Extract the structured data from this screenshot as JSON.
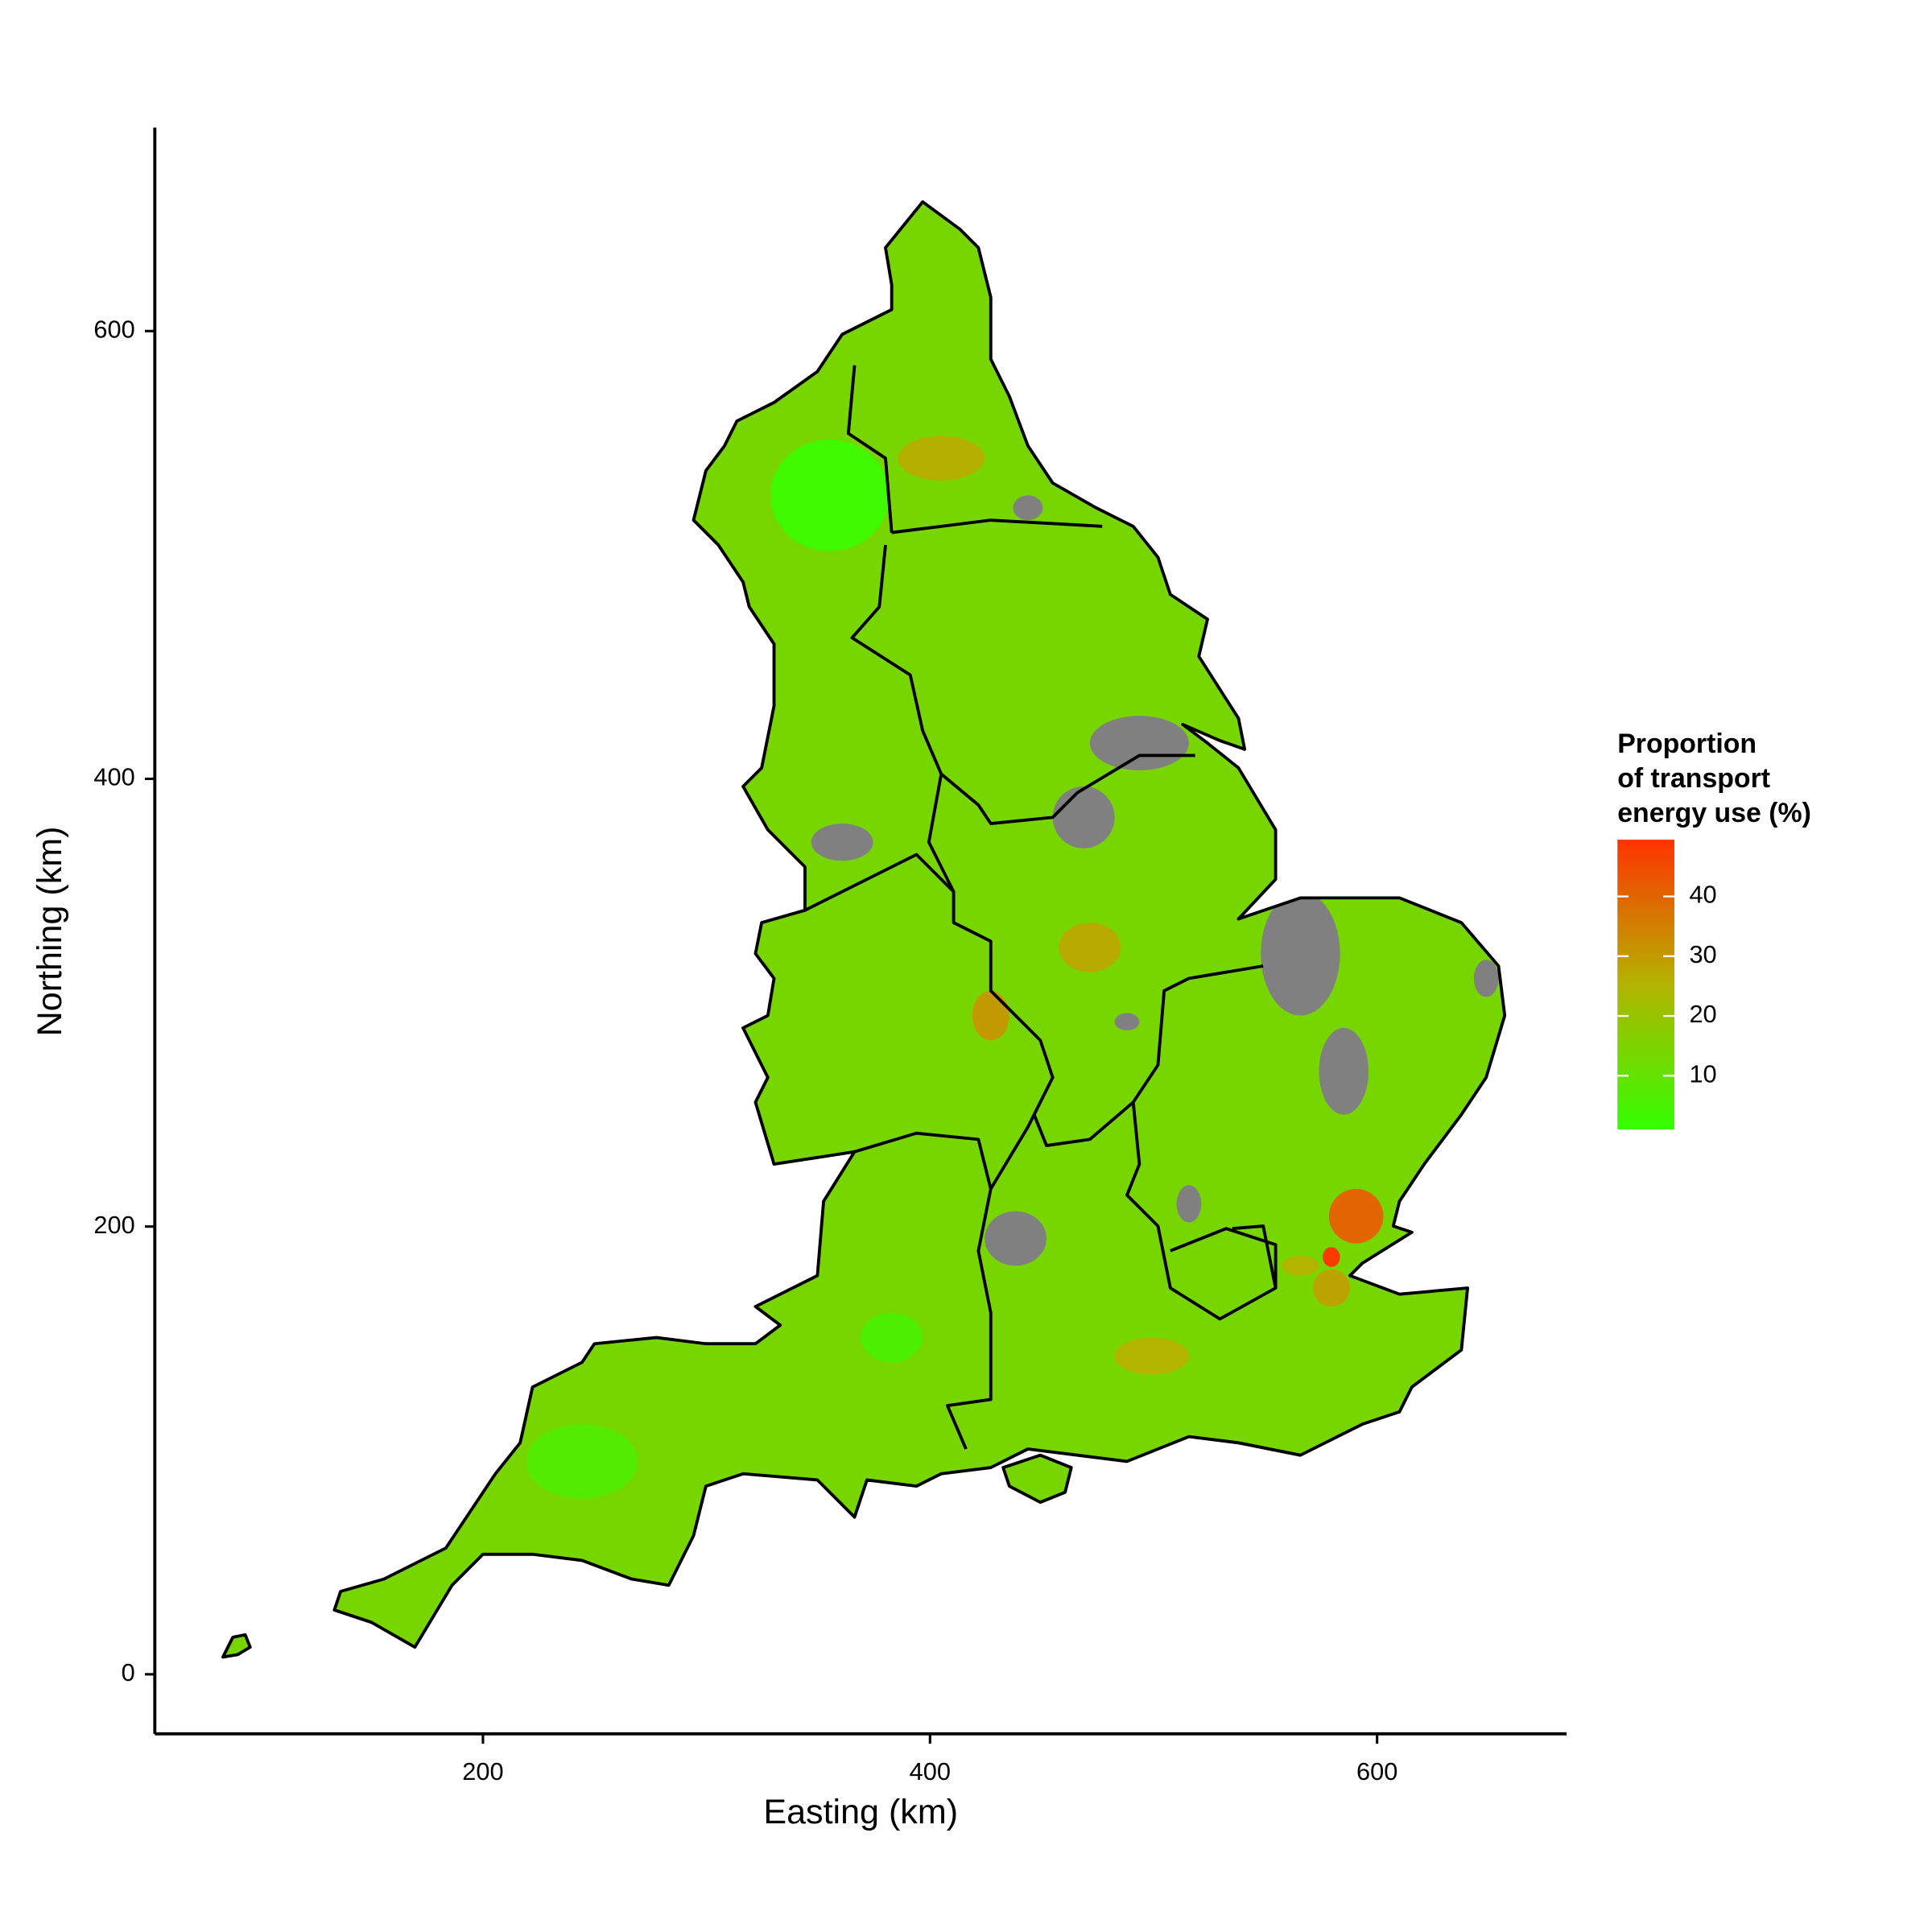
{
  "chart_data": {
    "type": "map",
    "xlabel": "Easting (km)",
    "ylabel": "Northing (km)",
    "xlim": [
      53.2,
      684.8
    ],
    "ylim": [
      -26.6,
      690.9
    ],
    "xticks": [
      200,
      400,
      600
    ],
    "yticks": [
      0,
      200,
      400,
      600
    ],
    "legend_title": [
      "Proportion",
      "of transport",
      "energy use (%)"
    ],
    "clim": [
      1,
      49.5
    ],
    "cticks": [
      10,
      20,
      30,
      40
    ],
    "colors": [
      "#33ff00",
      "#b3b300",
      "#ff3300"
    ],
    "na_color": "#808080",
    "values": [
      14,
      3,
      40,
      48,
      null,
      null,
      null,
      null,
      null,
      null,
      null,
      null,
      null,
      null,
      25,
      26,
      27,
      25,
      6,
      7,
      30,
      28
    ]
  }
}
